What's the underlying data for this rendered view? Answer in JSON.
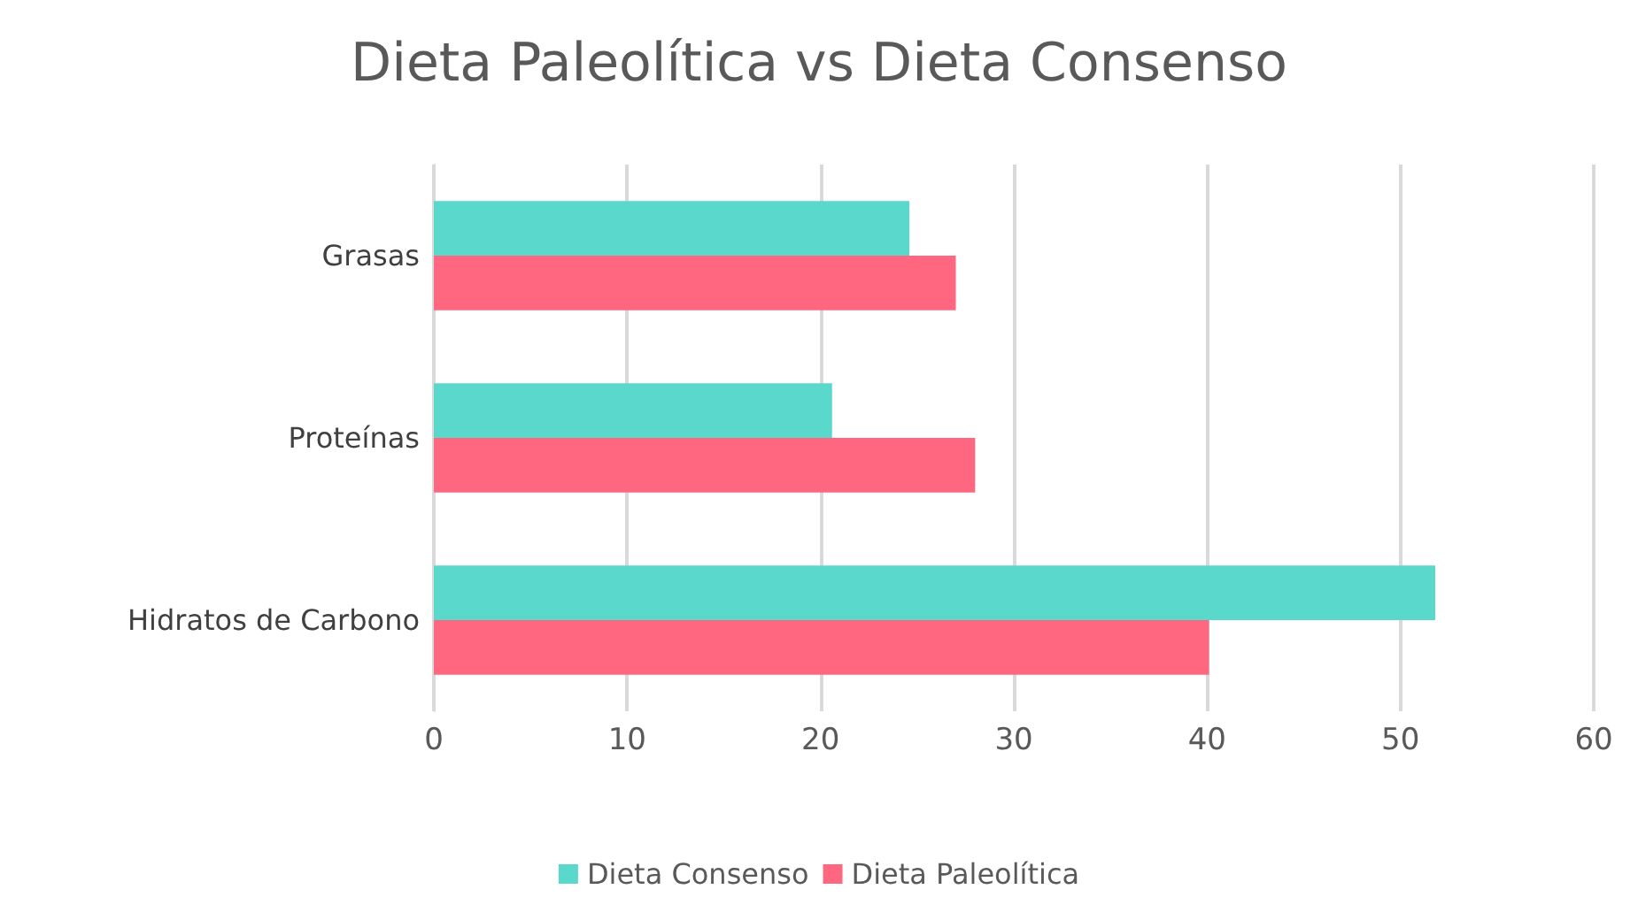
{
  "chart_data": {
    "type": "bar",
    "orientation": "horizontal",
    "title": "Dieta Paleolítica vs Dieta Consenso",
    "categories": [
      "Grasas",
      "Proteínas",
      "Hidratos de Carbono"
    ],
    "series": [
      {
        "name": "Dieta Consenso",
        "color": "#5ad8cc",
        "values": [
          24.6,
          20.6,
          51.8
        ]
      },
      {
        "name": "Dieta Paleolítica",
        "color": "#ff6680",
        "values": [
          27.0,
          28.0,
          40.1
        ]
      }
    ],
    "xlim": [
      0,
      60
    ],
    "xticks": [
      0,
      10,
      20,
      30,
      40,
      50,
      60
    ],
    "grid": "x",
    "legend": "bottom"
  }
}
